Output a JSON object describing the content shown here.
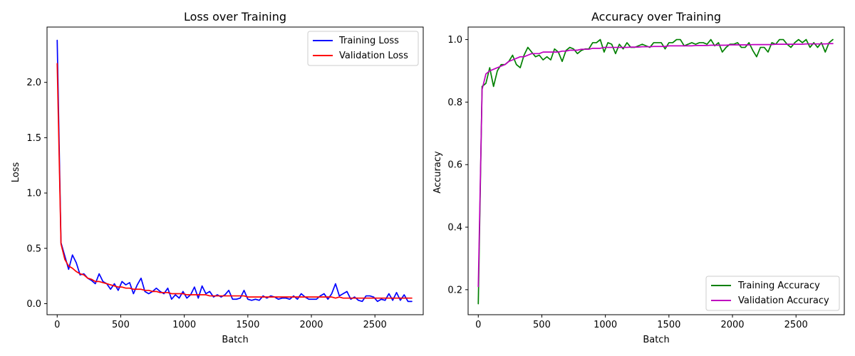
{
  "chart_data": [
    {
      "type": "line",
      "title": "Loss over Training",
      "xlabel": "Batch",
      "ylabel": "Loss",
      "xlim": [
        -80,
        2880
      ],
      "ylim": [
        -0.1,
        2.5
      ],
      "xticks": [
        0,
        500,
        1000,
        1500,
        2000,
        2500
      ],
      "yticks": [
        0.0,
        0.5,
        1.0,
        1.5,
        2.0
      ],
      "legend_position": "top-right",
      "grid": false,
      "series": [
        {
          "name": "Training Loss",
          "color": "#0000ff",
          "x": [
            0,
            30,
            60,
            90,
            120,
            150,
            180,
            210,
            240,
            270,
            300,
            330,
            360,
            390,
            420,
            450,
            480,
            510,
            540,
            570,
            600,
            630,
            660,
            690,
            720,
            750,
            780,
            810,
            840,
            870,
            900,
            930,
            960,
            990,
            1020,
            1050,
            1080,
            1110,
            1140,
            1170,
            1200,
            1230,
            1260,
            1290,
            1320,
            1350,
            1380,
            1410,
            1440,
            1470,
            1500,
            1530,
            1560,
            1590,
            1620,
            1650,
            1680,
            1710,
            1740,
            1770,
            1800,
            1830,
            1860,
            1890,
            1920,
            1950,
            1980,
            2010,
            2040,
            2070,
            2100,
            2130,
            2160,
            2190,
            2220,
            2250,
            2280,
            2310,
            2340,
            2370,
            2400,
            2430,
            2460,
            2490,
            2520,
            2550,
            2580,
            2610,
            2640,
            2670,
            2700,
            2730,
            2760,
            2790
          ],
          "y": [
            2.38,
            0.55,
            0.43,
            0.31,
            0.44,
            0.37,
            0.26,
            0.27,
            0.23,
            0.21,
            0.18,
            0.27,
            0.2,
            0.18,
            0.13,
            0.18,
            0.12,
            0.2,
            0.17,
            0.19,
            0.09,
            0.17,
            0.23,
            0.11,
            0.09,
            0.11,
            0.14,
            0.11,
            0.09,
            0.14,
            0.04,
            0.08,
            0.05,
            0.11,
            0.05,
            0.08,
            0.15,
            0.05,
            0.16,
            0.09,
            0.11,
            0.06,
            0.08,
            0.06,
            0.08,
            0.12,
            0.04,
            0.04,
            0.05,
            0.12,
            0.04,
            0.03,
            0.04,
            0.03,
            0.07,
            0.05,
            0.07,
            0.06,
            0.04,
            0.05,
            0.05,
            0.04,
            0.07,
            0.04,
            0.09,
            0.06,
            0.04,
            0.04,
            0.04,
            0.07,
            0.09,
            0.04,
            0.09,
            0.18,
            0.07,
            0.09,
            0.11,
            0.04,
            0.06,
            0.03,
            0.02,
            0.07,
            0.07,
            0.06,
            0.02,
            0.04,
            0.03,
            0.09,
            0.03,
            0.1,
            0.03,
            0.08,
            0.02,
            0.02
          ]
        },
        {
          "name": "Validation Loss",
          "color": "#ff0000",
          "x": [
            0,
            30,
            60,
            90,
            120,
            150,
            180,
            210,
            240,
            270,
            300,
            330,
            360,
            390,
            420,
            450,
            480,
            510,
            540,
            570,
            600,
            630,
            660,
            690,
            720,
            750,
            780,
            810,
            840,
            870,
            900,
            930,
            960,
            990,
            1020,
            1050,
            1080,
            1110,
            1140,
            1170,
            1200,
            1230,
            1260,
            1290,
            1320,
            1350,
            1380,
            1410,
            1440,
            1470,
            1500,
            1530,
            1560,
            1590,
            1620,
            1650,
            1680,
            1710,
            1740,
            1770,
            1800,
            1830,
            1860,
            1890,
            1920,
            1950,
            1980,
            2010,
            2040,
            2070,
            2100,
            2130,
            2160,
            2190,
            2220,
            2250,
            2280,
            2310,
            2340,
            2370,
            2400,
            2430,
            2460,
            2490,
            2520,
            2550,
            2580,
            2610,
            2640,
            2670,
            2700,
            2730,
            2760,
            2790
          ],
          "y": [
            2.17,
            0.54,
            0.4,
            0.34,
            0.32,
            0.29,
            0.27,
            0.26,
            0.23,
            0.22,
            0.2,
            0.2,
            0.19,
            0.18,
            0.17,
            0.16,
            0.15,
            0.15,
            0.14,
            0.14,
            0.13,
            0.13,
            0.13,
            0.12,
            0.12,
            0.11,
            0.11,
            0.1,
            0.1,
            0.1,
            0.09,
            0.09,
            0.09,
            0.09,
            0.08,
            0.08,
            0.08,
            0.08,
            0.08,
            0.08,
            0.07,
            0.07,
            0.07,
            0.07,
            0.07,
            0.07,
            0.07,
            0.07,
            0.07,
            0.07,
            0.06,
            0.06,
            0.06,
            0.06,
            0.06,
            0.06,
            0.06,
            0.06,
            0.06,
            0.06,
            0.06,
            0.06,
            0.06,
            0.06,
            0.06,
            0.06,
            0.06,
            0.06,
            0.06,
            0.06,
            0.06,
            0.06,
            0.06,
            0.05,
            0.06,
            0.05,
            0.05,
            0.05,
            0.05,
            0.05,
            0.05,
            0.05,
            0.05,
            0.05,
            0.05,
            0.05,
            0.05,
            0.05,
            0.05,
            0.05,
            0.05,
            0.05,
            0.05,
            0.05
          ]
        }
      ]
    },
    {
      "type": "line",
      "title": "Accuracy over Training",
      "xlabel": "Batch",
      "ylabel": "Accuracy",
      "xlim": [
        -80,
        2880
      ],
      "ylim": [
        0.12,
        1.04
      ],
      "xticks": [
        0,
        500,
        1000,
        1500,
        2000,
        2500
      ],
      "yticks": [
        0.2,
        0.4,
        0.6,
        0.8,
        1.0
      ],
      "legend_position": "bottom-right",
      "grid": false,
      "series": [
        {
          "name": "Training Accuracy",
          "color": "#008000",
          "x": [
            0,
            30,
            60,
            90,
            120,
            150,
            180,
            210,
            240,
            270,
            300,
            330,
            360,
            390,
            420,
            450,
            480,
            510,
            540,
            570,
            600,
            630,
            660,
            690,
            720,
            750,
            780,
            810,
            840,
            870,
            900,
            930,
            960,
            990,
            1020,
            1050,
            1080,
            1110,
            1140,
            1170,
            1200,
            1230,
            1260,
            1290,
            1320,
            1350,
            1380,
            1410,
            1440,
            1470,
            1500,
            1530,
            1560,
            1590,
            1620,
            1650,
            1680,
            1710,
            1740,
            1770,
            1800,
            1830,
            1860,
            1890,
            1920,
            1950,
            1980,
            2010,
            2040,
            2070,
            2100,
            2130,
            2160,
            2190,
            2220,
            2250,
            2280,
            2310,
            2340,
            2370,
            2400,
            2430,
            2460,
            2490,
            2520,
            2550,
            2580,
            2610,
            2640,
            2670,
            2700,
            2730,
            2760,
            2790
          ],
          "y": [
            0.155,
            0.85,
            0.86,
            0.91,
            0.85,
            0.9,
            0.92,
            0.92,
            0.93,
            0.95,
            0.92,
            0.91,
            0.95,
            0.975,
            0.96,
            0.945,
            0.95,
            0.935,
            0.945,
            0.935,
            0.97,
            0.96,
            0.93,
            0.965,
            0.975,
            0.97,
            0.955,
            0.965,
            0.97,
            0.97,
            0.99,
            0.99,
            1.0,
            0.96,
            0.99,
            0.985,
            0.955,
            0.985,
            0.97,
            0.99,
            0.975,
            0.975,
            0.98,
            0.985,
            0.98,
            0.975,
            0.99,
            0.99,
            0.99,
            0.97,
            0.99,
            0.99,
            1.0,
            1.0,
            0.98,
            0.985,
            0.99,
            0.985,
            0.99,
            0.99,
            0.985,
            1.0,
            0.98,
            0.99,
            0.96,
            0.975,
            0.985,
            0.985,
            0.99,
            0.975,
            0.975,
            0.99,
            0.965,
            0.945,
            0.975,
            0.975,
            0.96,
            0.99,
            0.985,
            1.0,
            1.0,
            0.985,
            0.975,
            0.99,
            1.0,
            0.99,
            1.0,
            0.975,
            0.99,
            0.975,
            0.99,
            0.96,
            0.99,
            1.0
          ]
        },
        {
          "name": "Validation Accuracy",
          "color": "#bf00bf",
          "x": [
            0,
            30,
            60,
            90,
            120,
            150,
            180,
            210,
            240,
            270,
            300,
            330,
            360,
            390,
            420,
            450,
            480,
            510,
            540,
            570,
            600,
            630,
            660,
            690,
            720,
            750,
            780,
            810,
            840,
            870,
            900,
            930,
            960,
            990,
            1020,
            1050,
            1080,
            1110,
            1140,
            1170,
            1200,
            1230,
            1260,
            1290,
            1320,
            1350,
            1380,
            1410,
            1440,
            1470,
            1500,
            1530,
            1560,
            1590,
            1620,
            1650,
            1680,
            1710,
            1740,
            1770,
            1800,
            1830,
            1860,
            1890,
            1920,
            1950,
            1980,
            2010,
            2040,
            2070,
            2100,
            2130,
            2160,
            2190,
            2220,
            2250,
            2280,
            2310,
            2340,
            2370,
            2400,
            2430,
            2460,
            2490,
            2520,
            2550,
            2580,
            2610,
            2640,
            2670,
            2700,
            2730,
            2760,
            2790
          ],
          "y": [
            0.21,
            0.84,
            0.89,
            0.9,
            0.905,
            0.91,
            0.915,
            0.92,
            0.93,
            0.935,
            0.94,
            0.945,
            0.945,
            0.95,
            0.955,
            0.955,
            0.955,
            0.96,
            0.96,
            0.96,
            0.96,
            0.96,
            0.963,
            0.963,
            0.966,
            0.966,
            0.966,
            0.969,
            0.969,
            0.969,
            0.972,
            0.972,
            0.972,
            0.975,
            0.975,
            0.975,
            0.975,
            0.975,
            0.975,
            0.975,
            0.976,
            0.976,
            0.976,
            0.977,
            0.977,
            0.977,
            0.978,
            0.978,
            0.978,
            0.978,
            0.98,
            0.98,
            0.98,
            0.98,
            0.98,
            0.98,
            0.98,
            0.981,
            0.981,
            0.981,
            0.981,
            0.982,
            0.982,
            0.982,
            0.982,
            0.982,
            0.983,
            0.983,
            0.983,
            0.983,
            0.983,
            0.983,
            0.984,
            0.984,
            0.984,
            0.984,
            0.984,
            0.984,
            0.985,
            0.985,
            0.985,
            0.985,
            0.985,
            0.985,
            0.985,
            0.985,
            0.986,
            0.986,
            0.986,
            0.986,
            0.986,
            0.986,
            0.987,
            0.987
          ]
        }
      ]
    }
  ]
}
